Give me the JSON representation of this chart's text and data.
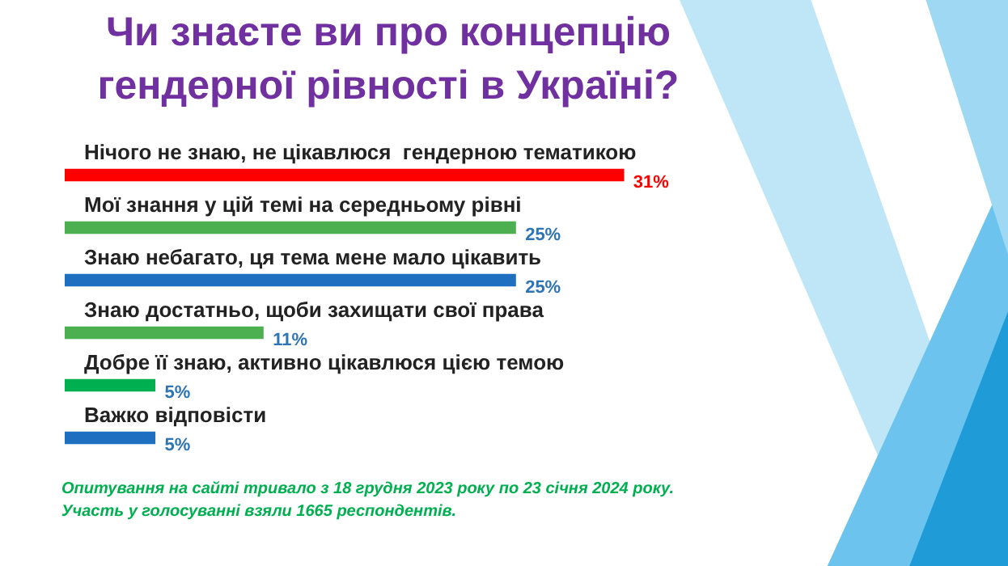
{
  "chart_data": {
    "type": "bar",
    "orientation": "horizontal",
    "title": "Чи знаєте ви про концепцію гендерної рівності в Україні?",
    "categories": [
      "Нічого не знаю, не цікавлюся  гендерною тематикою",
      "Мої знання у цій темі на середньому рівні",
      "Знаю небагато, ця тема мене мало цікавить",
      "Знаю достатньо, щоби захищати свої права",
      "Добре її знаю, активно цікавлюся цією темою",
      "Важко відповісти"
    ],
    "values": [
      31,
      25,
      25,
      11,
      5,
      5
    ],
    "colors": [
      "#ff0000",
      "#4caf50",
      "#1f6fc0",
      "#4caf50",
      "#00b050",
      "#1f6fc0"
    ],
    "value_labels": [
      "31%",
      "25%",
      "25%",
      "11%",
      "5%",
      "5%"
    ],
    "annotations": [
      "Опитування на сайті тривало з 18 грудня 2023 року по 23 січня 2024 року.",
      "Участь у голосуванні взяли 1665 респондентів."
    ]
  }
}
